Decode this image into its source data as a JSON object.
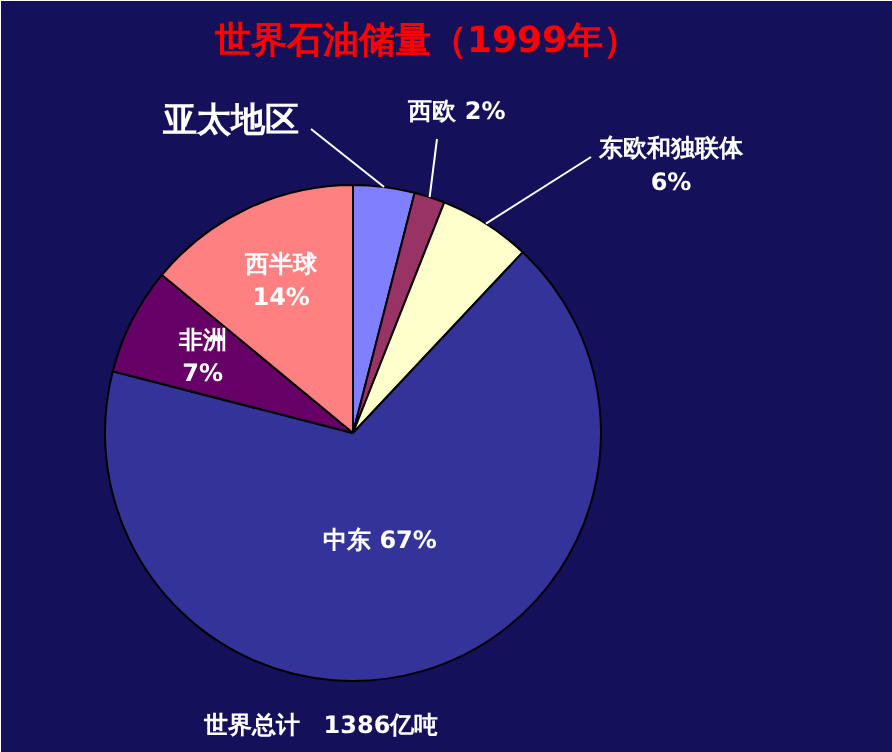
{
  "chart_data": {
    "type": "pie",
    "title": "世界石油储量（1999年）",
    "categories": [
      "亚太地区",
      "西欧",
      "东欧和独联体",
      "中东",
      "非洲",
      "西半球"
    ],
    "values": [
      4,
      2,
      6,
      67,
      7,
      14
    ],
    "value_labels": [
      null,
      "2%",
      "6%",
      "67%",
      "7%",
      "14%"
    ],
    "colors": [
      "#8080ff",
      "#993366",
      "#ffffcc",
      "#333399",
      "#660066",
      "#ff8080"
    ],
    "annotations": [
      "世界总计　1386亿吨"
    ]
  }
}
